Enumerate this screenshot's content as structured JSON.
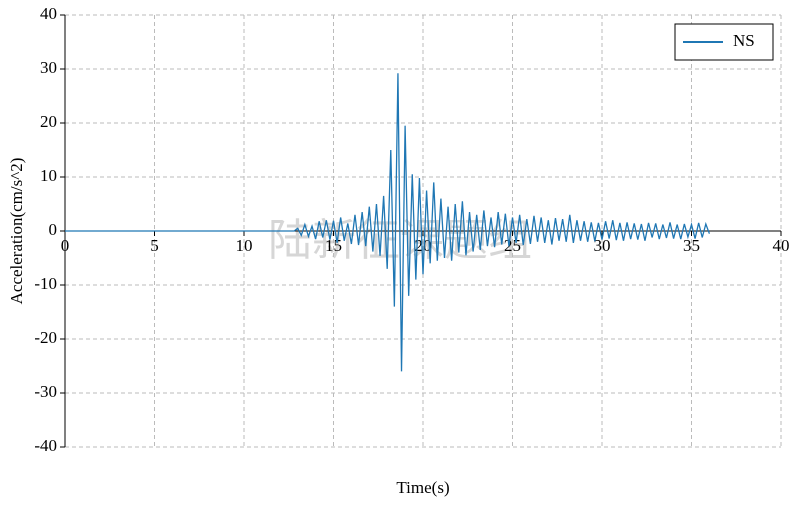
{
  "chart_data": {
    "type": "line",
    "xlabel": "Time(s)",
    "ylabel": "Acceleration(cm/s^2)",
    "watermark": "陆新征课题组",
    "x": [
      0,
      12.8,
      13,
      13.2,
      13.4,
      13.6,
      13.8,
      14,
      14.2,
      14.4,
      14.6,
      14.8,
      15,
      15.2,
      15.4,
      15.6,
      15.8,
      16,
      16.2,
      16.4,
      16.6,
      16.8,
      17,
      17.2,
      17.4,
      17.6,
      17.8,
      18,
      18.2,
      18.4,
      18.6,
      18.8,
      19,
      19.2,
      19.4,
      19.6,
      19.8,
      20,
      20.2,
      20.4,
      20.6,
      20.8,
      21,
      21.2,
      21.4,
      21.6,
      21.8,
      22,
      22.2,
      22.4,
      22.6,
      22.8,
      23,
      23.2,
      23.4,
      23.6,
      23.8,
      24,
      24.2,
      24.4,
      24.6,
      24.8,
      25,
      25.2,
      25.4,
      25.6,
      25.8,
      26,
      26.2,
      26.4,
      26.6,
      26.8,
      27,
      27.2,
      27.4,
      27.6,
      27.8,
      28,
      28.2,
      28.4,
      28.6,
      28.8,
      29,
      29.2,
      29.4,
      29.6,
      29.8,
      30,
      30.2,
      30.4,
      30.6,
      30.8,
      31,
      31.2,
      31.4,
      31.6,
      31.8,
      32,
      32.2,
      32.4,
      32.6,
      32.8,
      33,
      33.2,
      33.4,
      33.6,
      33.8,
      34,
      34.2,
      34.4,
      34.6,
      34.8,
      35,
      35.2,
      35.4,
      35.6,
      35.8,
      36
    ],
    "series": [
      {
        "name": "NS",
        "color": "#1f77b4",
        "values": [
          0,
          0,
          0.5,
          -0.8,
          1.2,
          -1.0,
          0.9,
          -1.5,
          1.8,
          -1.2,
          2.0,
          -1.6,
          1.9,
          -2.2,
          2.5,
          -1.8,
          1.4,
          -2.4,
          3.0,
          -2.6,
          3.5,
          -2.8,
          4.5,
          -3.8,
          5.0,
          -4.6,
          6.5,
          -7.0,
          15.0,
          -14.0,
          29.2,
          -26.0,
          19.5,
          -12.0,
          10.5,
          -9.0,
          9.8,
          -8.0,
          7.5,
          -6.0,
          9.0,
          -5.5,
          6.0,
          -5.0,
          4.5,
          -5.5,
          5.0,
          -4.0,
          5.5,
          -4.5,
          3.5,
          -3.8,
          3.0,
          -3.5,
          3.8,
          -2.8,
          2.5,
          -3.0,
          3.5,
          -2.5,
          3.2,
          -2.8,
          2.5,
          -2.2,
          3.0,
          -2.6,
          2.2,
          -2.4,
          2.8,
          -2.0,
          2.5,
          -2.2,
          2.0,
          -2.5,
          2.4,
          -1.8,
          2.2,
          -2.0,
          3.0,
          -2.2,
          2.0,
          -1.8,
          1.8,
          -2.0,
          1.6,
          -1.9,
          1.5,
          -1.6,
          1.8,
          -1.4,
          2.0,
          -1.7,
          1.5,
          -1.8,
          1.6,
          -1.5,
          1.4,
          -1.6,
          1.3,
          -1.8,
          1.5,
          -1.2,
          1.4,
          -1.5,
          1.2,
          -1.3,
          1.6,
          -1.4,
          1.2,
          -1.5,
          1.3,
          -1.1,
          1.2,
          -1.4,
          1.5,
          -1.2,
          1.3,
          -0.5
        ]
      }
    ],
    "xlim": [
      0,
      40
    ],
    "xticks": [
      0,
      5,
      10,
      15,
      20,
      25,
      30,
      35,
      40
    ],
    "ylim": [
      -40,
      40
    ],
    "yticks": [
      -40,
      -30,
      -20,
      -10,
      0,
      10,
      20,
      30,
      40
    ],
    "grid": true,
    "legend": "upper right"
  }
}
